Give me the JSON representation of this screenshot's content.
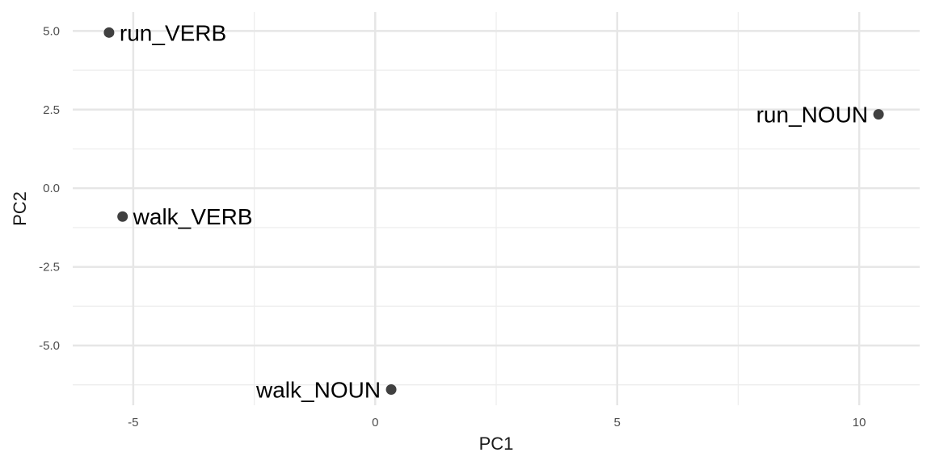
{
  "chart_data": {
    "type": "scatter",
    "title": "",
    "xlabel": "PC1",
    "ylabel": "PC2",
    "xlim": [
      -6.25,
      11.25
    ],
    "ylim": [
      -6.9,
      5.6
    ],
    "x_ticks": [
      -5,
      0,
      5,
      10
    ],
    "x_tick_labels": [
      "-5",
      "0",
      "5",
      "10"
    ],
    "y_ticks": [
      5.0,
      2.5,
      0.0,
      -2.5,
      -5.0
    ],
    "y_tick_labels": [
      "5.0",
      "2.5",
      "0.0",
      "-2.5",
      "-5.0"
    ],
    "x_minor_ticks": [
      -2.5,
      2.5,
      7.5
    ],
    "y_minor_ticks": [
      3.75,
      1.25,
      -1.25,
      -3.75,
      -6.25
    ],
    "grid": true,
    "point_color": "#404040",
    "points": [
      {
        "label": "run_VERB",
        "x": -5.5,
        "y": 4.95,
        "label_side": "right"
      },
      {
        "label": "walk_VERB",
        "x": -5.22,
        "y": -0.9,
        "label_side": "right"
      },
      {
        "label": "run_NOUN",
        "x": 10.4,
        "y": 2.35,
        "label_side": "left"
      },
      {
        "label": "walk_NOUN",
        "x": 0.33,
        "y": -6.4,
        "label_side": "left"
      }
    ]
  }
}
